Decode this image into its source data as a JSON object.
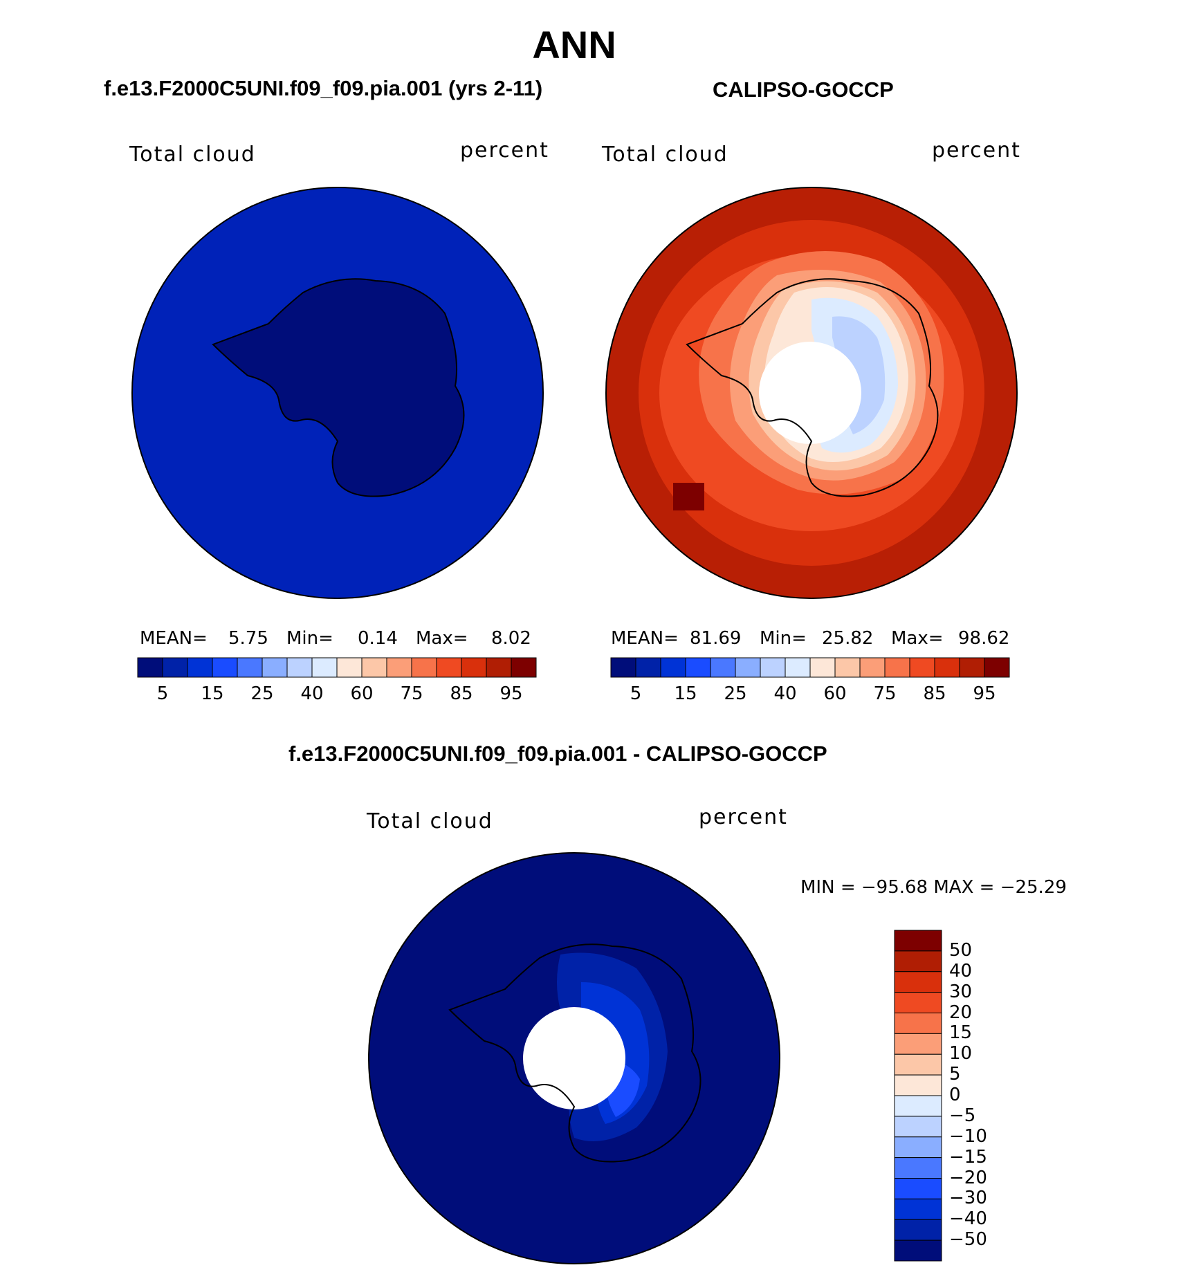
{
  "title": "ANN",
  "panels": [
    {
      "title": "f.e13.F2000C5UNI.f09_f09.pia.001 (yrs 2-11)",
      "left_label": "Total cloud",
      "right_label": "percent",
      "stats": {
        "mean_label": "MEAN=",
        "mean": "5.75",
        "min_label": "Min=",
        "min": "0.14",
        "max_label": "Max=",
        "max": "8.02"
      }
    },
    {
      "title": "CALIPSO-GOCCP",
      "left_label": "Total cloud",
      "right_label": "percent",
      "stats": {
        "mean_label": "MEAN=",
        "mean": "81.69",
        "min_label": "Min=",
        "min": "25.82",
        "max_label": "Max=",
        "max": "98.62"
      }
    }
  ],
  "abs_colorbar": {
    "colors": [
      "#000d7a",
      "#0022a8",
      "#0033d6",
      "#1a4cff",
      "#4a78ff",
      "#8aaeff",
      "#bcd2ff",
      "#dcebff",
      "#fde7d8",
      "#fcc7a8",
      "#fb9e78",
      "#f7734a",
      "#ef4a22",
      "#d9300c",
      "#b01e04",
      "#7d0000"
    ],
    "tick_labels": [
      "5",
      "15",
      "25",
      "40",
      "60",
      "75",
      "85",
      "95"
    ]
  },
  "diff_panel": {
    "title": "f.e13.F2000C5UNI.f09_f09.pia.001 - CALIPSO-GOCCP",
    "left_label": "Total cloud",
    "right_label": "percent",
    "minmax": "MIN = −95.68 MAX = −25.29"
  },
  "diff_colorbar": {
    "colors_top_to_bottom": [
      "#7d0000",
      "#b01e04",
      "#d9300c",
      "#ef4a22",
      "#f7734a",
      "#fb9e78",
      "#fcc7a8",
      "#fde7d8",
      "#dcebff",
      "#bcd2ff",
      "#8aaeff",
      "#4a78ff",
      "#1a4cff",
      "#0033d6",
      "#0022a8",
      "#000d7a"
    ],
    "tick_labels": [
      "50",
      "40",
      "30",
      "20",
      "15",
      "10",
      "5",
      "0",
      "−5",
      "−10",
      "−15",
      "−20",
      "−30",
      "−40",
      "−50"
    ]
  }
}
